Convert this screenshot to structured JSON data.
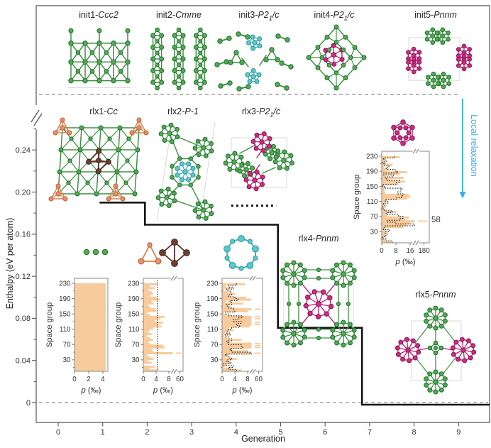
{
  "palette": {
    "green": {
      "fill": "#54aa54",
      "edge": "#1f6f2e",
      "bond": "#3f9143"
    },
    "magenta": {
      "fill": "#cb2d7f",
      "edge": "#8c1553",
      "bond": "#b72471"
    },
    "cyan": {
      "fill": "#5cc7cc",
      "edge": "#2b979d",
      "bond": "#45b4ba"
    },
    "orange": {
      "fill": "#e89068",
      "edge": "#bd5f33",
      "bond": "#d97f4f"
    },
    "brown": {
      "fill": "#6d4034",
      "edge": "#43241c",
      "bond": "#5a322a"
    },
    "bar_fill": "#f7cb9b",
    "axis": "#555555",
    "text": "#333333",
    "dash": "#909090",
    "staircase": "#141414",
    "arrow_cyan": "#35b1e3",
    "cell": "#d8d8d8"
  },
  "annotations": {
    "local_relaxation": "Local relaxation",
    "sg58": "58"
  },
  "axes": {
    "x": {
      "label": "Generation",
      "ticks": [
        "0",
        "1",
        "2",
        "3",
        "4",
        "5",
        "6",
        "7",
        "8",
        "9"
      ]
    },
    "y": {
      "label": "Enthalpy (eV per atom)",
      "ticks": [
        "0",
        "0.04",
        "0.08",
        "0.12",
        "0.16",
        "0.20",
        "0.24"
      ],
      "minor": [
        0.02,
        0.06,
        0.1,
        0.14,
        0.18,
        0.22,
        0.26
      ],
      "has_break": true
    }
  },
  "structures": [
    {
      "id": "init1",
      "name": "init1",
      "sg": {
        "pre": "Ccc2",
        "sub": "",
        "post": ""
      },
      "kind": "lattice-pins",
      "colors": [
        "green"
      ]
    },
    {
      "id": "init2",
      "name": "init2",
      "sg": {
        "pre": "Cmme",
        "sub": "",
        "post": ""
      },
      "kind": "triple-columns",
      "colors": [
        "green"
      ]
    },
    {
      "id": "init3",
      "name": "init3",
      "sg": {
        "pre": "P2",
        "sub": "1",
        "post": "/c"
      },
      "kind": "chains-and-clusters",
      "colors": [
        "green",
        "cyan"
      ]
    },
    {
      "id": "init4",
      "name": "init4",
      "sg": {
        "pre": "P2",
        "sub": "1",
        "post": "/c"
      },
      "kind": "dense-diamond",
      "colors": [
        "green",
        "magenta"
      ]
    },
    {
      "id": "init5",
      "name": "init5",
      "sg": {
        "pre": "Pnnm",
        "sub": "",
        "post": ""
      },
      "kind": "four-cluster-pinwheel",
      "colors": [
        "green",
        "magenta"
      ]
    },
    {
      "id": "rlx1",
      "name": "rlx1",
      "sg": {
        "pre": "Cc",
        "sub": "",
        "post": ""
      },
      "kind": "accented-lattice",
      "colors": [
        "green",
        "orange",
        "brown"
      ]
    },
    {
      "id": "rlx2",
      "name": "rlx2",
      "sg": {
        "pre": "P-1",
        "sub": "",
        "post": ""
      },
      "kind": "ring-network-cyan-core",
      "colors": [
        "green",
        "cyan"
      ]
    },
    {
      "id": "rlx3",
      "name": "rlx3",
      "sg": {
        "pre": "P2",
        "sub": "1",
        "post": "/c"
      },
      "kind": "twin-magenta-ring",
      "colors": [
        "green",
        "magenta"
      ]
    },
    {
      "id": "rlx4",
      "name": "rlx4",
      "sg": {
        "pre": "Pnnm",
        "sub": "",
        "post": ""
      },
      "kind": "x-rosettes",
      "colors": [
        "green",
        "magenta"
      ]
    },
    {
      "id": "rlx5",
      "name": "rlx5",
      "sg": {
        "pre": "Pnnm",
        "sub": "",
        "post": ""
      },
      "kind": "diamond-rosettes",
      "colors": [
        "green",
        "magenta"
      ]
    }
  ],
  "fragments": [
    {
      "id": "monomers",
      "kind": "dots3",
      "color": "green"
    },
    {
      "id": "trimer",
      "kind": "tri3",
      "color": "orange"
    },
    {
      "id": "tetramer",
      "kind": "quad4",
      "color": "brown"
    },
    {
      "id": "octaring",
      "kind": "ring9",
      "color": "cyan"
    },
    {
      "id": "icosahedron",
      "kind": "icosa",
      "color": "magenta"
    }
  ],
  "chart_data": [
    {
      "id": "enthalpy-vs-generation",
      "type": "line",
      "title": "",
      "xlabel": "Generation",
      "ylabel": "Enthalpy (eV per atom)",
      "xlim": [
        -0.45,
        9.7
      ],
      "ylim": [
        -0.02,
        0.265
      ],
      "x_ticks": [
        0,
        1,
        2,
        3,
        4,
        5,
        6,
        7,
        8,
        9
      ],
      "y_ticks": [
        0,
        0.04,
        0.08,
        0.12,
        0.16,
        0.2,
        0.24
      ],
      "y_axis_break_above": 0.26,
      "grid": false,
      "legend": null,
      "series": [
        {
          "name": "lowest-enthalpy staircase",
          "style": "solid-step",
          "points": [
            [
              0.93,
              0.19
            ],
            [
              1.95,
              0.19
            ],
            [
              1.95,
              0.169
            ],
            [
              4.94,
              0.169
            ],
            [
              4.94,
              0.071
            ],
            [
              6.83,
              0.071
            ],
            [
              6.83,
              -0.002
            ],
            [
              9.7,
              -0.002
            ]
          ]
        },
        {
          "name": "rlx3 enthalpy marker",
          "style": "dotted",
          "points": [
            [
              3.89,
              0.187
            ],
            [
              4.9,
              0.187
            ]
          ]
        }
      ],
      "reference_lines": [
        {
          "y": 0,
          "style": "dashed"
        },
        {
          "y": "top-separator",
          "style": "dashed"
        }
      ]
    },
    {
      "id": "hist-gen1",
      "type": "bar",
      "orientation": "horizontal",
      "xlabel": "p (‰)",
      "ylabel": "Space group",
      "x_ticks": [
        0,
        2,
        4
      ],
      "x_far_tick": null,
      "x_break_after": null,
      "y_ticks": [
        30,
        70,
        110,
        150,
        190,
        230
      ],
      "sg_range": [
        1,
        230
      ],
      "bin_size": 5,
      "uniform_value": 4.35,
      "values": null,
      "overlay": null,
      "note": "uniform probability ~4.35 per mil over all 230 space groups"
    },
    {
      "id": "hist-gen2",
      "type": "bar",
      "orientation": "horizontal",
      "xlabel": "p (‰)",
      "ylabel": "Space group",
      "x_ticks": [
        0,
        4,
        8
      ],
      "x_far_tick": 60,
      "x_break_after": 9.3,
      "y_ticks": [
        30,
        70,
        110,
        150,
        190,
        230
      ],
      "sg_range": [
        1,
        230
      ],
      "bin_size": 5,
      "overlay": {
        "type": "uniform-line",
        "value": 4.35
      },
      "values": [
        4.5,
        2,
        3.5,
        0,
        2.5,
        1.5,
        3,
        2,
        1,
        52,
        3,
        2.5,
        6.5,
        6,
        2,
        1.5,
        3,
        2,
        1,
        2.5,
        1.5,
        2,
        3,
        5.5,
        4.5,
        6,
        3.5,
        5,
        6.5,
        2,
        1,
        4,
        3.5,
        2,
        1.5,
        3,
        2.5,
        5,
        4,
        2,
        3,
        2.5,
        1.5,
        3.5,
        2,
        4.5
      ]
    },
    {
      "id": "hist-gen4",
      "type": "bar",
      "orientation": "horizontal",
      "xlabel": "p (‰)",
      "ylabel": "Space group",
      "x_ticks": [
        0,
        4,
        8
      ],
      "x_far_tick": 60,
      "x_break_after": 9.3,
      "y_ticks": [
        30,
        70,
        110,
        150,
        190,
        230
      ],
      "sg_range": [
        1,
        230
      ],
      "bin_size": 5,
      "overlay": {
        "type": "step",
        "source": "hist-gen2"
      },
      "values": [
        6,
        2.5,
        0.5,
        1.5,
        3,
        2,
        4.5,
        1,
        2,
        55,
        8,
        3,
        10.5,
        12,
        9.5,
        2.5,
        6,
        1.5,
        0.5,
        2,
        1,
        3.5,
        2,
        8.5,
        11,
        12,
        9,
        10.5,
        11.5,
        1.5,
        0.5,
        8,
        10,
        3,
        2,
        6.5,
        1,
        9,
        7.5,
        2.5,
        4,
        1.5,
        0.5,
        2.5,
        1,
        7
      ]
    },
    {
      "id": "hist-gen7",
      "type": "bar",
      "orientation": "horizontal",
      "xlabel": "p (‰)",
      "ylabel": "Space group",
      "x_ticks": [
        0,
        8,
        16
      ],
      "x_far_tick": 180,
      "x_break_after": 18.8,
      "y_ticks": [
        30,
        70,
        110,
        150,
        190,
        230
      ],
      "sg_range": [
        1,
        230
      ],
      "bin_size": 5,
      "overlay": {
        "type": "step",
        "source": "hist-gen4"
      },
      "callout": {
        "label": "58",
        "sg": 58,
        "value": 180
      },
      "values": [
        5,
        2,
        1,
        2,
        1.5,
        3,
        2,
        1,
        12,
        14,
        16,
        180,
        13,
        15,
        3,
        2,
        8,
        2,
        1,
        1.5,
        1,
        2,
        3,
        14,
        16,
        15,
        2,
        1.5,
        1,
        2,
        1,
        9,
        13,
        4,
        12,
        2,
        10,
        14,
        3,
        2,
        1,
        6,
        2,
        1,
        2,
        10
      ]
    }
  ]
}
